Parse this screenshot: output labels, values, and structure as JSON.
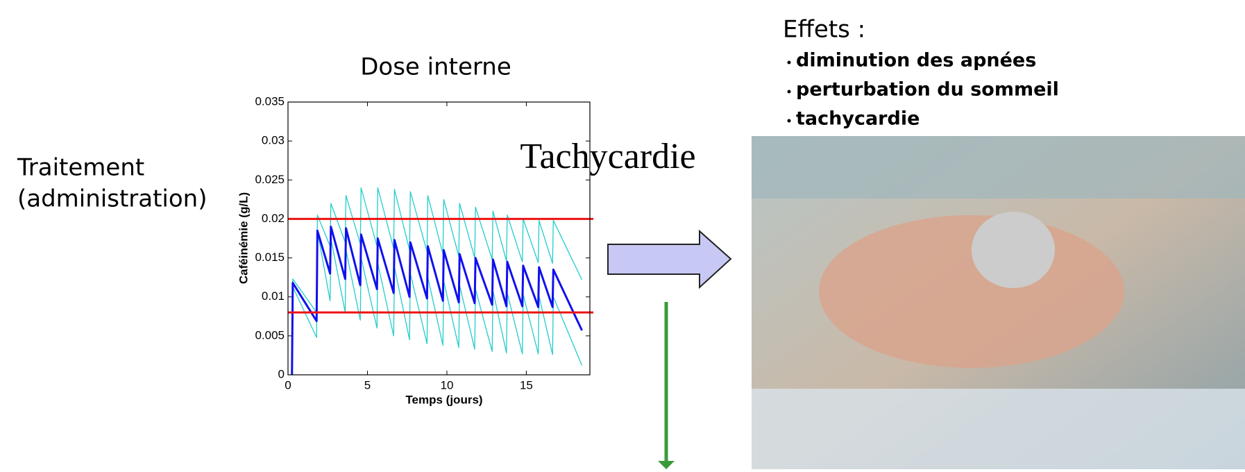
{
  "chart_data": {
    "type": "line",
    "title": "Dose interne",
    "xlabel": "Temps (jours)",
    "ylabel": "Caféinémie (g/L)",
    "xlim": [
      0,
      19
    ],
    "ylim": [
      0,
      0.035
    ],
    "xticks": [
      0,
      5,
      10,
      15
    ],
    "yticks": [
      0,
      0.005,
      0.01,
      0.015,
      0.02,
      0.025,
      0.03,
      0.035
    ],
    "x": [
      0.25,
      0.3,
      1.8,
      1.85,
      2.65,
      2.7,
      3.6,
      3.65,
      4.55,
      4.6,
      5.6,
      5.65,
      6.65,
      6.7,
      7.65,
      7.7,
      8.75,
      8.8,
      9.75,
      9.8,
      10.75,
      10.8,
      11.75,
      11.8,
      12.85,
      12.9,
      13.75,
      13.8,
      14.75,
      14.8,
      15.75,
      15.8,
      16.65,
      16.7,
      18.5
    ],
    "series": [
      {
        "color": "#22cccc",
        "width": 1.3,
        "values": [
          0,
          0.0123,
          0.008,
          0.0205,
          0.0165,
          0.022,
          0.017,
          0.023,
          0.0168,
          0.024,
          0.0165,
          0.024,
          0.0162,
          0.0238,
          0.016,
          0.0235,
          0.0158,
          0.023,
          0.0155,
          0.0225,
          0.0152,
          0.022,
          0.015,
          0.0215,
          0.0148,
          0.021,
          0.0146,
          0.0205,
          0.0145,
          0.02,
          0.0144,
          0.0198,
          0.0143,
          0.0198,
          0.0122
        ]
      },
      {
        "color": "#22cccc",
        "width": 1.3,
        "values": [
          0,
          0.0113,
          0.0048,
          0.0185,
          0.0095,
          0.0175,
          0.008,
          0.016,
          0.007,
          0.015,
          0.006,
          0.0143,
          0.005,
          0.0138,
          0.0045,
          0.013,
          0.004,
          0.0125,
          0.0038,
          0.012,
          0.0035,
          0.0115,
          0.0033,
          0.011,
          0.003,
          0.0108,
          0.0028,
          0.0105,
          0.0027,
          0.0103,
          0.0027,
          0.0101,
          0.0026,
          0.01,
          0.0012
        ]
      },
      {
        "color": "#1010ee",
        "width": 3,
        "values": [
          0,
          0.0118,
          0.0069,
          0.0185,
          0.013,
          0.019,
          0.0123,
          0.0188,
          0.0115,
          0.018,
          0.011,
          0.0175,
          0.0105,
          0.0173,
          0.01,
          0.017,
          0.0098,
          0.0165,
          0.0095,
          0.016,
          0.0093,
          0.0155,
          0.0092,
          0.015,
          0.009,
          0.0148,
          0.0088,
          0.0145,
          0.0088,
          0.014,
          0.0087,
          0.0138,
          0.0087,
          0.0135,
          0.0057
        ]
      }
    ],
    "hlines": [
      {
        "value": 0.02,
        "color": "#ee1111"
      },
      {
        "value": 0.008,
        "color": "#ee1111"
      }
    ]
  },
  "slide": {
    "treatment": [
      "Traitement",
      "(administration)"
    ],
    "annotation": "Tachycardie",
    "effects_title": "Effets :",
    "effects": [
      "diminution des apnées",
      "perturbation du sommeil",
      "tachycardie"
    ]
  }
}
